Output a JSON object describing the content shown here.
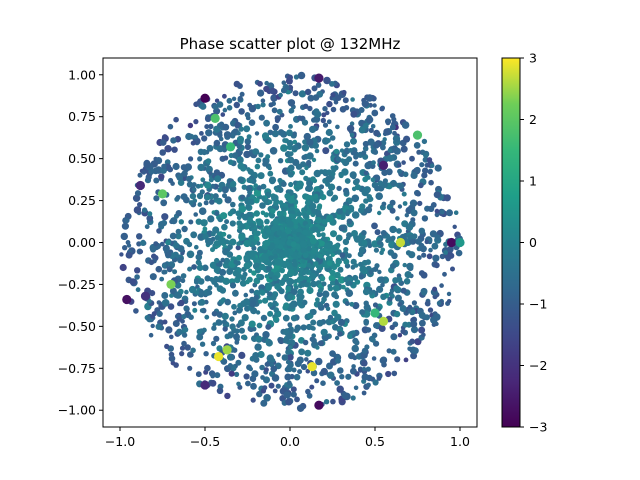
{
  "chart_data": {
    "type": "scatter",
    "title": "Phase scatter plot @ 132MHz",
    "xlabel": "",
    "ylabel": "",
    "xlim": [
      -1.1,
      1.1
    ],
    "ylim": [
      -1.1,
      1.1
    ],
    "x_ticks": [
      -1.0,
      -0.5,
      0.0,
      0.5,
      1.0
    ],
    "x_tick_labels": [
      "−1.0",
      "−0.5",
      "0.0",
      "0.5",
      "1.0"
    ],
    "y_ticks": [
      -1.0,
      -0.75,
      -0.5,
      -0.25,
      0.0,
      0.25,
      0.5,
      0.75,
      1.0
    ],
    "y_tick_labels": [
      "−1.00",
      "−0.75",
      "−0.50",
      "−0.25",
      "0.00",
      "0.25",
      "0.50",
      "0.75",
      "1.00"
    ],
    "grid": false,
    "colormap": "viridis",
    "colorbar": {
      "range": [
        -3,
        3
      ],
      "ticks": [
        -3,
        -2,
        -1,
        0,
        1,
        2,
        3
      ],
      "tick_labels": [
        "−3",
        "−2",
        "−1",
        "0",
        "1",
        "2",
        "3"
      ]
    },
    "data_summary": "About 2500 points filling the unit disk; densest cluster at the center, color value near 0 on average and more negative toward the edge; bright yellow (+3) and dark purple (−3) points lie close to the circle.",
    "highlight_points": [
      {
        "x": -0.5,
        "y": 0.86,
        "c": -3
      },
      {
        "x": 0.17,
        "y": 0.98,
        "c": -2.5
      },
      {
        "x": 0.75,
        "y": 0.64,
        "c": 1.8
      },
      {
        "x": 0.55,
        "y": 0.46,
        "c": -2.4
      },
      {
        "x": -0.35,
        "y": 0.57,
        "c": 1.5
      },
      {
        "x": -0.44,
        "y": 0.74,
        "c": 1.8
      },
      {
        "x": 0.65,
        "y": 0.0,
        "c": 2.7
      },
      {
        "x": 0.95,
        "y": 0.0,
        "c": -2.8
      },
      {
        "x": 1.0,
        "y": 0.0,
        "c": 0.6
      },
      {
        "x": 0.55,
        "y": -0.47,
        "c": 2.6
      },
      {
        "x": 0.5,
        "y": -0.42,
        "c": 1.5
      },
      {
        "x": -0.42,
        "y": -0.68,
        "c": 2.9
      },
      {
        "x": -0.37,
        "y": -0.64,
        "c": 2.5
      },
      {
        "x": 0.13,
        "y": -0.74,
        "c": 2.9
      },
      {
        "x": 0.17,
        "y": -0.97,
        "c": -2.8
      },
      {
        "x": -0.96,
        "y": -0.34,
        "c": -2.7
      },
      {
        "x": -0.85,
        "y": -0.32,
        "c": -2.0
      },
      {
        "x": -0.7,
        "y": -0.25,
        "c": 2.3
      },
      {
        "x": -0.88,
        "y": 0.34,
        "c": -2.2
      },
      {
        "x": -0.75,
        "y": 0.29,
        "c": 2.0
      },
      {
        "x": -0.5,
        "y": -0.85,
        "c": -2.2
      }
    ]
  }
}
